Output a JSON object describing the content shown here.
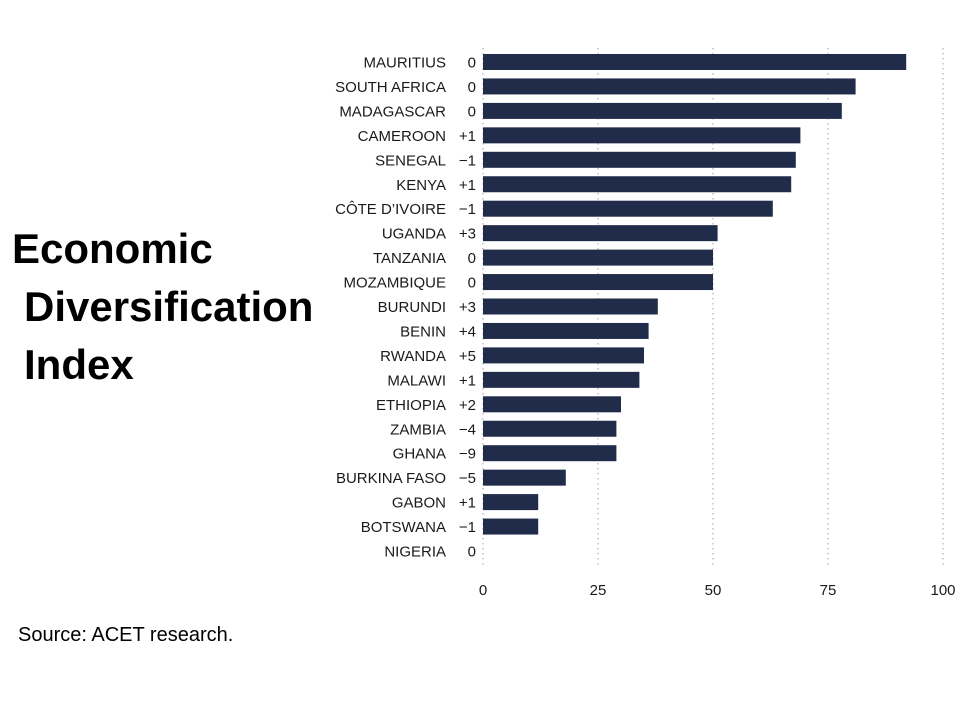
{
  "title_lines": [
    "Economic",
    "Diversification",
    "Index"
  ],
  "source": "Source: ACET research.",
  "colors": {
    "bar": "#212b4a",
    "grid": "#b0b0b0",
    "text": "#1a1a1a"
  },
  "chart_data": {
    "type": "bar",
    "orientation": "horizontal",
    "title": "Economic Diversification Index",
    "categories": [
      "MAURITIUS",
      "SOUTH AFRICA",
      "MADAGASCAR",
      "CAMEROON",
      "SENEGAL",
      "KENYA",
      "CÔTE D’IVOIRE",
      "UGANDA",
      "TANZANIA",
      "MOZAMBIQUE",
      "BURUNDI",
      "BENIN",
      "RWANDA",
      "MALAWI",
      "ETHIOPIA",
      "ZAMBIA",
      "GHANA",
      "BURKINA FASO",
      "GABON",
      "BOTSWANA",
      "NIGERIA"
    ],
    "rank_changes": [
      "0",
      "0",
      "0",
      "+1",
      "−1",
      "+1",
      "−1",
      "+3",
      "0",
      "0",
      "+3",
      "+4",
      "+5",
      "+1",
      "+2",
      "−4",
      "−9",
      "−5",
      "+1",
      "−1",
      "0"
    ],
    "values": [
      92,
      81,
      78,
      69,
      68,
      67,
      63,
      51,
      50,
      50,
      38,
      36,
      35,
      34,
      30,
      29,
      29,
      18,
      12,
      12,
      0
    ],
    "xlim": [
      0,
      100
    ],
    "xticks": [
      "0",
      "25",
      "50",
      "75",
      "100"
    ],
    "xlabel": "",
    "ylabel": "",
    "grid": "vertical dotted"
  }
}
